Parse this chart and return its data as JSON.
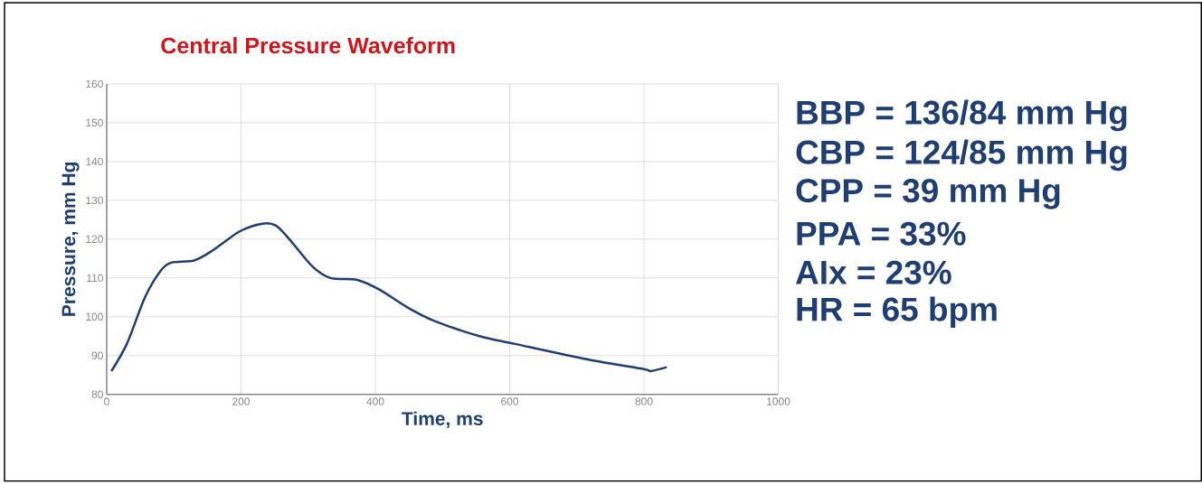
{
  "chart_data": {
    "type": "line",
    "title": "Central Pressure Waveform",
    "xlabel": "Time, ms",
    "ylabel": "Pressure, mm Hg",
    "x": [
      7,
      30,
      57,
      81,
      97,
      130,
      157,
      198,
      232,
      252,
      272,
      306,
      333,
      373,
      406,
      447,
      487,
      555,
      608,
      716,
      800,
      810,
      834
    ],
    "series": [
      {
        "color": "#1f3f73",
        "values": [
          86,
          93,
          105,
          112,
          114,
          114.5,
          117,
          122,
          124,
          123.5,
          120,
          113,
          110,
          109.5,
          107,
          102.5,
          99,
          95,
          93,
          89,
          86.5,
          86,
          87
        ]
      }
    ],
    "xlim": [
      0,
      1000
    ],
    "ylim": [
      80,
      160
    ],
    "xticks": [
      0,
      200,
      400,
      600,
      800,
      1000
    ],
    "yticks": [
      80,
      90,
      100,
      110,
      120,
      130,
      140,
      150,
      160
    ],
    "grid": true,
    "marker": "none",
    "line_style": "solid",
    "annotations": [
      "BBP = 136/84 mm Hg",
      "CBP = 124/85 mm Hg",
      "CPP = 39 mm Hg",
      "PPA = 33%",
      "AIx = 23%",
      "HR = 65 bpm"
    ]
  }
}
